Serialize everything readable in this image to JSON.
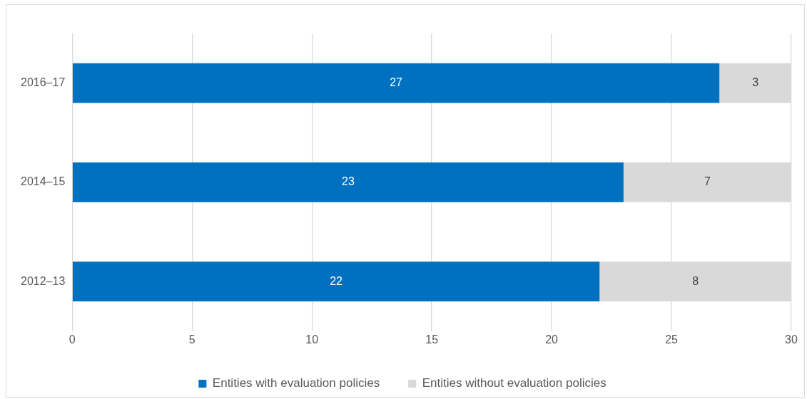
{
  "chart_data": {
    "type": "bar",
    "orientation": "horizontal",
    "stacked": true,
    "categories": [
      "2016–17",
      "2014–15",
      "2012–13"
    ],
    "series": [
      {
        "name": "Entities with evaluation policies",
        "color": "#0070c0",
        "values": [
          27,
          23,
          22
        ]
      },
      {
        "name": "Entities without evaluation policies",
        "color": "#d9d9d9",
        "values": [
          3,
          7,
          8
        ]
      }
    ],
    "xlim": [
      0,
      30
    ],
    "xticks": [
      0,
      5,
      10,
      15,
      20,
      25,
      30
    ],
    "grid": "x",
    "legend": "bottom",
    "data_labels": true
  }
}
